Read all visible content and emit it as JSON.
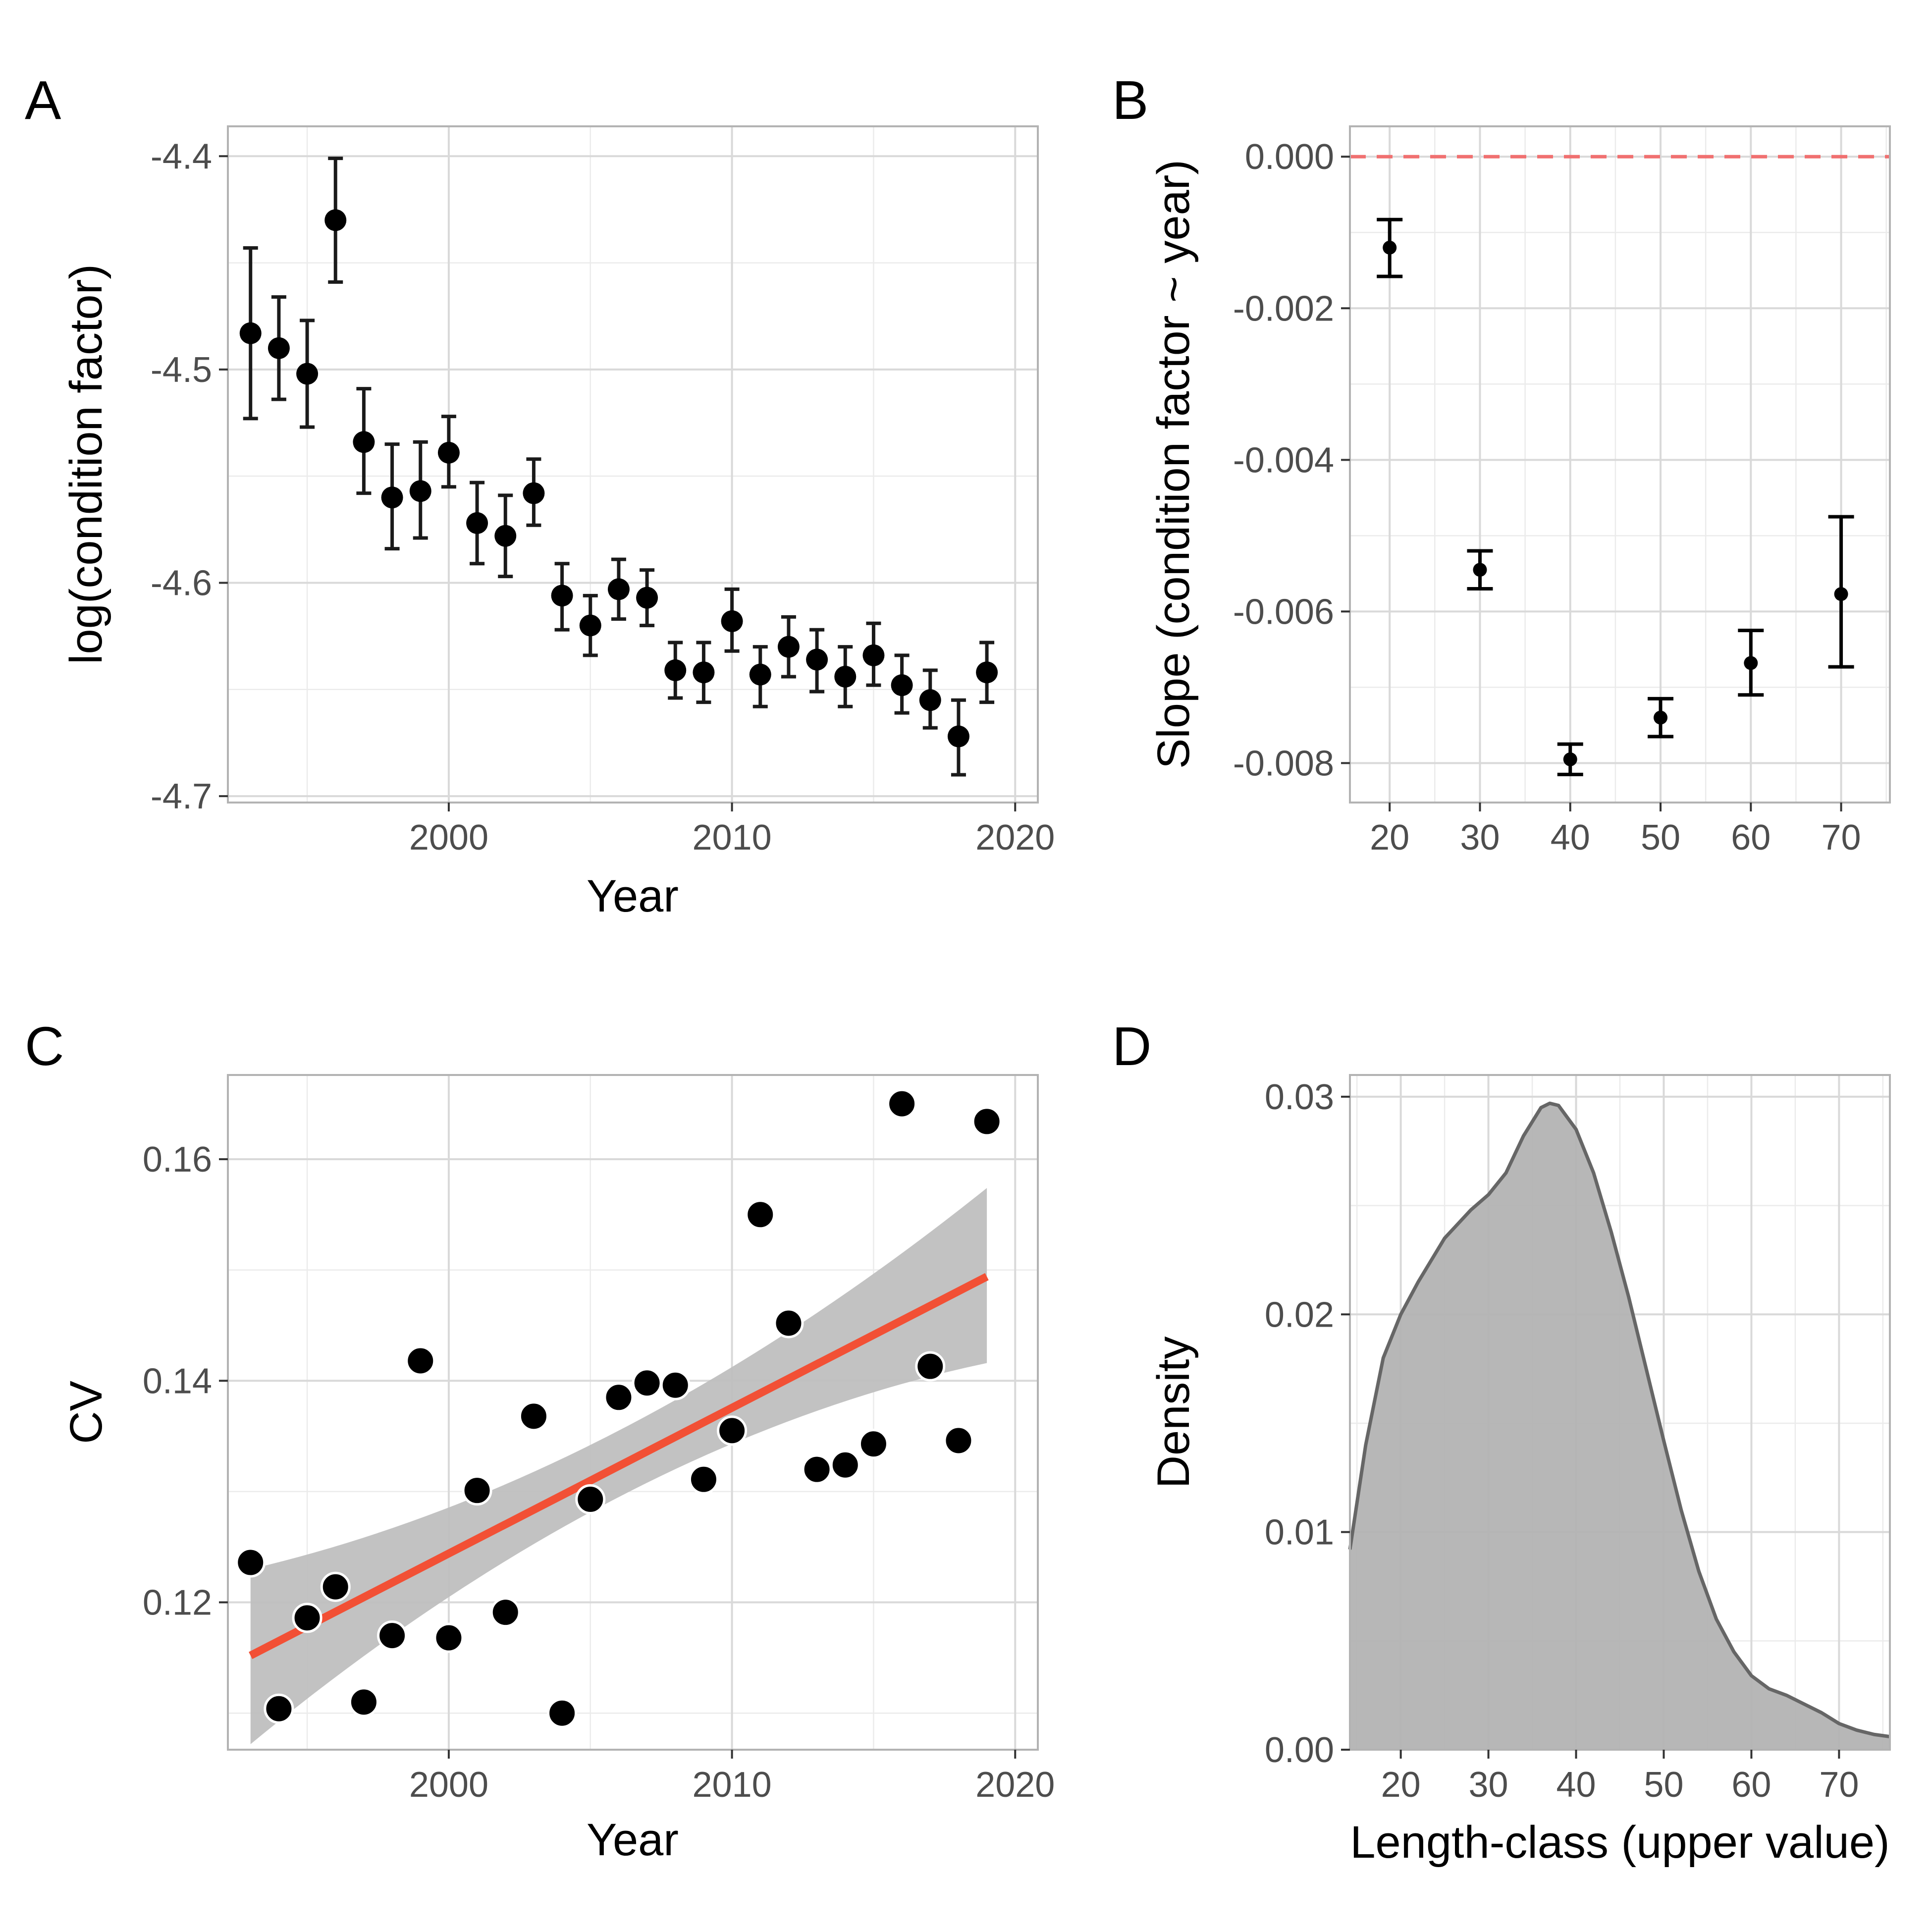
{
  "chart_data": [
    {
      "panel": "A",
      "type": "scatter",
      "error_bars": true,
      "xlabel": "Year",
      "ylabel": "log(condition factor)",
      "xlim": [
        1992.2,
        2020.8
      ],
      "ylim": [
        -4.703,
        -4.386
      ],
      "xticks": [
        2000,
        2010,
        2020
      ],
      "yticks": [
        -4.4,
        -4.5,
        -4.6,
        -4.7
      ],
      "x": [
        1993,
        1994,
        1995,
        1996,
        1997,
        1998,
        1999,
        2000,
        2001,
        2002,
        2003,
        2004,
        2005,
        2006,
        2007,
        2008,
        2009,
        2010,
        2011,
        2012,
        2013,
        2014,
        2015,
        2016,
        2017,
        2018,
        2019
      ],
      "y": [
        -4.483,
        -4.49,
        -4.502,
        -4.43,
        -4.534,
        -4.56,
        -4.557,
        -4.539,
        -4.572,
        -4.578,
        -4.558,
        -4.606,
        -4.62,
        -4.603,
        -4.607,
        -4.641,
        -4.642,
        -4.618,
        -4.643,
        -4.63,
        -4.636,
        -4.644,
        -4.634,
        -4.648,
        -4.655,
        -4.672,
        -4.642
      ],
      "lower": [
        -4.523,
        -4.514,
        -4.527,
        -4.459,
        -4.558,
        -4.584,
        -4.579,
        -4.555,
        -4.591,
        -4.597,
        -4.573,
        -4.622,
        -4.634,
        -4.617,
        -4.62,
        -4.654,
        -4.656,
        -4.632,
        -4.658,
        -4.644,
        -4.651,
        -4.658,
        -4.648,
        -4.661,
        -4.668,
        -4.69,
        -4.656
      ],
      "upper": [
        -4.443,
        -4.466,
        -4.477,
        -4.401,
        -4.509,
        -4.535,
        -4.534,
        -4.522,
        -4.553,
        -4.559,
        -4.542,
        -4.591,
        -4.606,
        -4.589,
        -4.594,
        -4.628,
        -4.628,
        -4.603,
        -4.63,
        -4.616,
        -4.622,
        -4.63,
        -4.619,
        -4.634,
        -4.641,
        -4.655,
        -4.628
      ],
      "colors": {
        "points": "#000000",
        "bars": "#1a1a1a"
      }
    },
    {
      "panel": "B",
      "type": "scatter",
      "error_bars": true,
      "xlabel": "",
      "ylabel": "Slope (condition factor ~ year)",
      "xlim": [
        15.6,
        75.4
      ],
      "ylim": [
        -0.00852,
        0.0004
      ],
      "xticks": [
        20,
        30,
        40,
        50,
        60,
        70
      ],
      "yticks": [
        "0.000",
        "-0.002",
        "-0.004",
        "-0.006",
        "-0.008"
      ],
      "x": [
        20,
        30,
        40,
        50,
        60,
        70
      ],
      "y": [
        -0.0012,
        -0.00545,
        -0.00795,
        -0.0074,
        -0.00668,
        -0.00577
      ],
      "lower": [
        -0.00158,
        -0.0057,
        -0.00815,
        -0.00765,
        -0.0071,
        -0.00673
      ],
      "upper": [
        -0.00083,
        -0.0052,
        -0.00775,
        -0.00715,
        -0.00625,
        -0.00475
      ],
      "reference_line": {
        "y": 0,
        "style": "dashed",
        "color": "#f07070"
      },
      "colors": {
        "points": "#000000"
      }
    },
    {
      "panel": "C",
      "type": "scatter",
      "trend": "linear fit with 95% confidence band",
      "xlabel": "Year",
      "ylabel": "CV",
      "xlim": [
        1992.2,
        2020.8
      ],
      "ylim": [
        0.1067,
        0.1676
      ],
      "xticks": [
        2000,
        2010,
        2020
      ],
      "yticks": [
        0.12,
        0.14,
        0.16
      ],
      "x": [
        1993,
        1994,
        1995,
        1996,
        1997,
        1998,
        1999,
        2000,
        2001,
        2002,
        2003,
        2004,
        2005,
        2006,
        2007,
        2008,
        2009,
        2010,
        2011,
        2012,
        2013,
        2014,
        2015,
        2016,
        2017,
        2018,
        2019
      ],
      "y": [
        0.1236,
        0.1104,
        0.1186,
        0.1214,
        0.111,
        0.117,
        0.1418,
        0.1168,
        0.1301,
        0.1191,
        0.1368,
        0.11,
        0.1293,
        0.1385,
        0.1398,
        0.1396,
        0.1311,
        0.1355,
        0.155,
        0.1452,
        0.132,
        0.1324,
        0.1343,
        0.165,
        0.1413,
        0.1346,
        0.1634
      ],
      "fit": {
        "x": [
          1993,
          2019
        ],
        "y": [
          0.1152,
          0.1494
        ]
      },
      "band": {
        "x": [
          1993,
          2006,
          2019
        ],
        "lower": [
          0.1072,
          0.1295,
          0.1416
        ],
        "upper": [
          0.123,
          0.1355,
          0.1574
        ]
      },
      "colors": {
        "points": "#000000",
        "point_outline": "#ffffff",
        "fit": "#f25035",
        "band": "#bfbfbf"
      }
    },
    {
      "panel": "D",
      "type": "area",
      "xlabel": "Length-class (upper value)",
      "ylabel": "Density",
      "xlim": [
        14.2,
        75.8
      ],
      "ylim": [
        0,
        0.031
      ],
      "xticks": [
        20,
        30,
        40,
        50,
        60,
        70
      ],
      "yticks": [
        "0.00",
        "0.01",
        "0.02",
        "0.03"
      ],
      "x": [
        14.2,
        16,
        18,
        20,
        22,
        25,
        28,
        30,
        32,
        34,
        36,
        37,
        38,
        40,
        42,
        44,
        46,
        48,
        50,
        52,
        54,
        56,
        58,
        60,
        62,
        64,
        66,
        68,
        70,
        72,
        74,
        75.8
      ],
      "y": [
        0.0092,
        0.014,
        0.018,
        0.02,
        0.0215,
        0.0235,
        0.0248,
        0.0255,
        0.0265,
        0.0282,
        0.0295,
        0.0297,
        0.0296,
        0.0285,
        0.0265,
        0.0238,
        0.0208,
        0.0175,
        0.0142,
        0.011,
        0.0082,
        0.006,
        0.0045,
        0.0034,
        0.0028,
        0.0025,
        0.0021,
        0.0017,
        0.0012,
        0.0009,
        0.0007,
        0.0006
      ],
      "colors": {
        "fill": "#b3b3b3",
        "line": "#666666"
      }
    }
  ],
  "panel_tags": [
    "A",
    "B",
    "C",
    "D"
  ]
}
